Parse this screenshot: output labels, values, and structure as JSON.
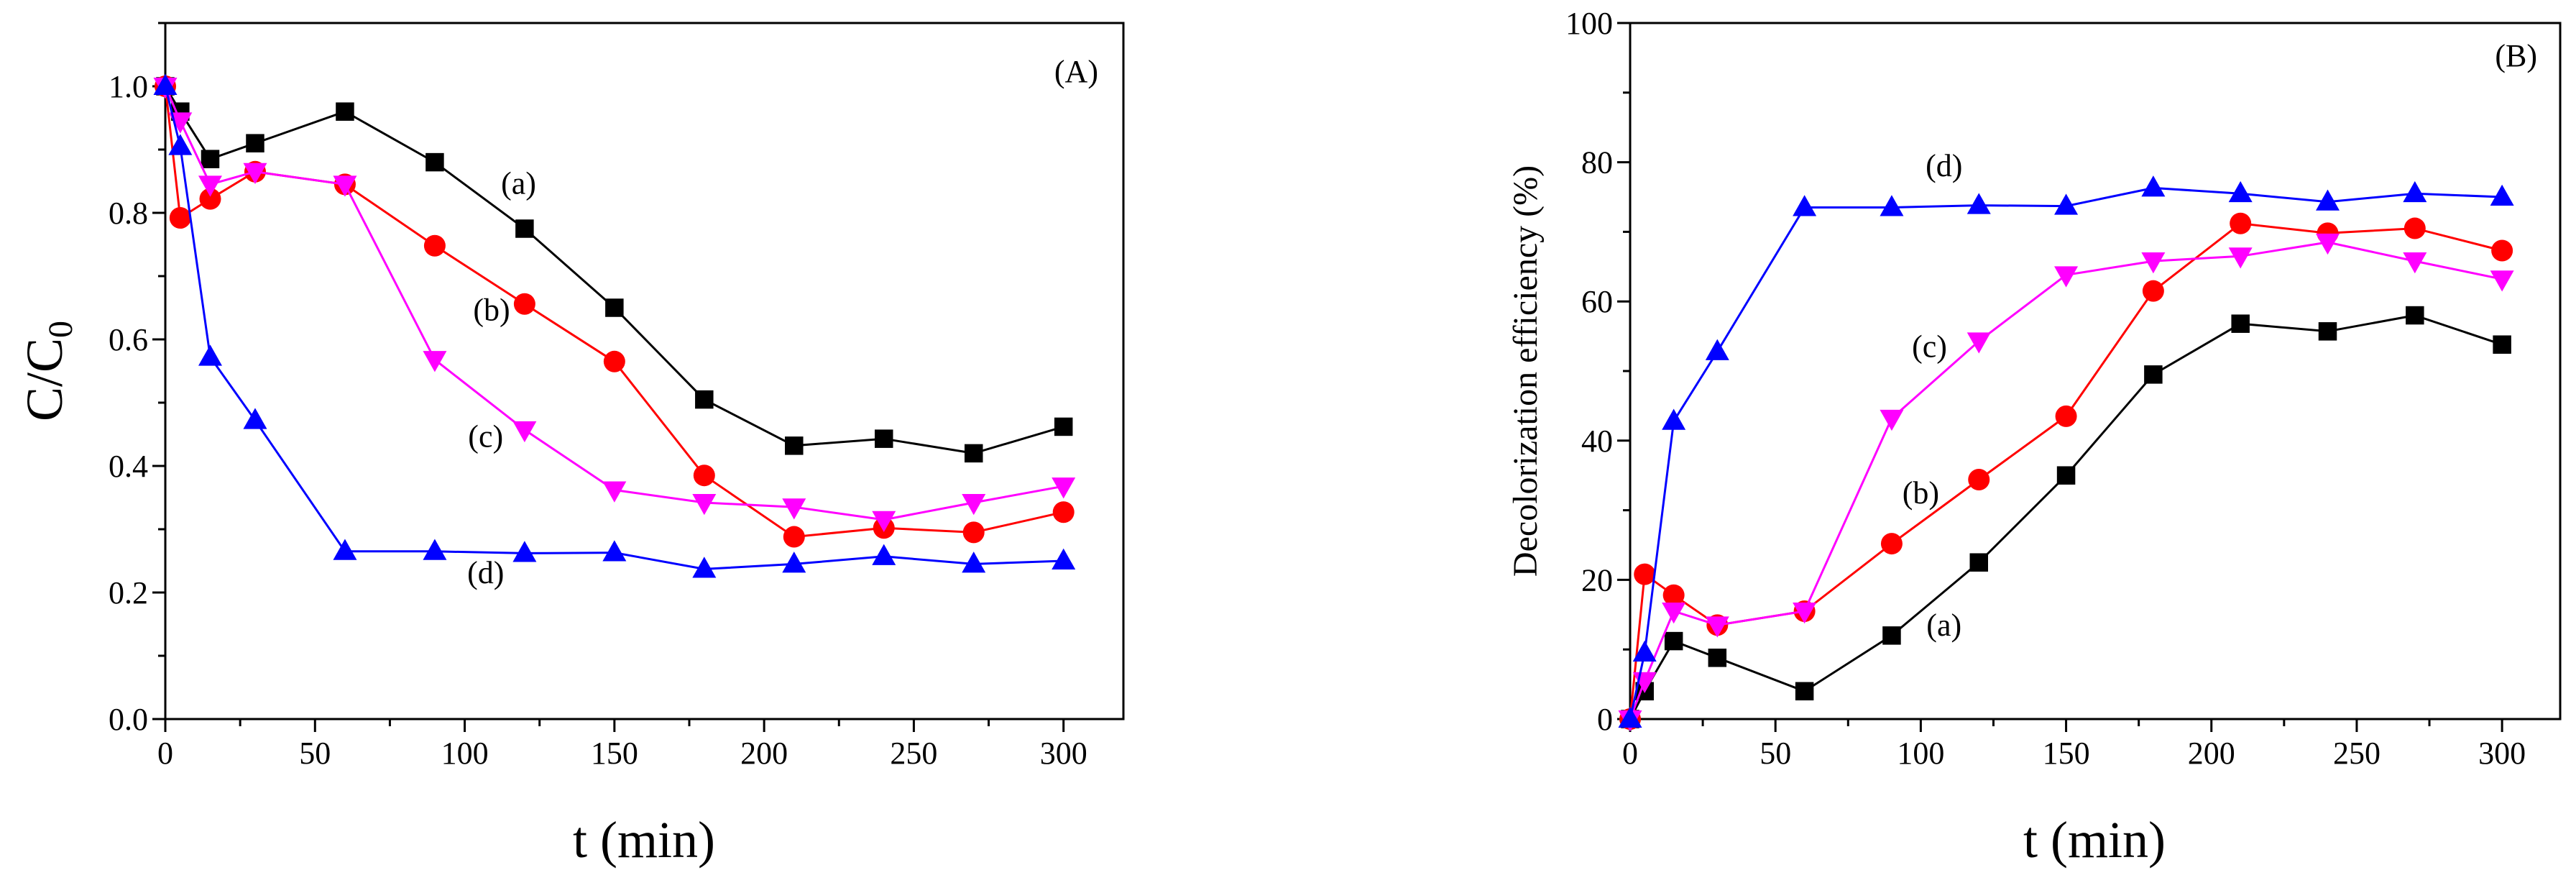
{
  "chart_data": [
    {
      "type": "line",
      "panel_label": "(A)",
      "xlabel": "t (min)",
      "ylabel": {
        "main": "C/C",
        "sub": "0"
      },
      "xlim": [
        0,
        320
      ],
      "ylim": [
        0,
        1.1
      ],
      "x_ticks": [
        "0",
        "50",
        "100",
        "150",
        "200",
        "250",
        "300"
      ],
      "y_ticks": [
        "0.0",
        "0.2",
        "0.4",
        "0.6",
        "0.8",
        "1.0"
      ],
      "x": [
        0,
        5,
        15,
        30,
        60,
        90,
        120,
        150,
        180,
        210,
        240,
        270,
        300
      ],
      "series": [
        {
          "name": "(a)",
          "color": "#000000",
          "marker": "square",
          "values": [
            1.0,
            0.96,
            0.885,
            0.91,
            0.96,
            0.88,
            0.775,
            0.65,
            0.505,
            0.432,
            0.443,
            0.42,
            0.462
          ]
        },
        {
          "name": "(b)",
          "color": "#ff0000",
          "marker": "circle",
          "values": [
            1.0,
            0.792,
            0.822,
            0.865,
            0.845,
            0.748,
            0.656,
            0.565,
            0.385,
            0.288,
            0.302,
            0.295,
            0.327
          ]
        },
        {
          "name": "(c)",
          "color": "#ff00ff",
          "marker": "triangle-down",
          "values": [
            1.0,
            0.945,
            0.845,
            0.865,
            0.845,
            0.568,
            0.457,
            0.362,
            0.342,
            0.335,
            0.315,
            0.342,
            0.368
          ]
        },
        {
          "name": "(d)",
          "color": "#0000ff",
          "marker": "triangle-up",
          "values": [
            1.0,
            0.905,
            0.572,
            0.472,
            0.265,
            0.265,
            0.262,
            0.263,
            0.237,
            0.245,
            0.257,
            0.245,
            0.25
          ]
        }
      ],
      "annotations": [
        {
          "text": "(a)",
          "x": 118,
          "y": 0.83
        },
        {
          "text": "(b)",
          "x": 109,
          "y": 0.63
        },
        {
          "text": "(c)",
          "x": 107,
          "y": 0.43
        },
        {
          "text": "(d)",
          "x": 107,
          "y": 0.215
        }
      ]
    },
    {
      "type": "line",
      "panel_label": "(B)",
      "xlabel": "t (min)",
      "ylabel": "Decolorization efficiency (%)",
      "xlim": [
        0,
        320
      ],
      "ylim": [
        0,
        100
      ],
      "x_ticks": [
        "0",
        "50",
        "100",
        "150",
        "200",
        "250",
        "300"
      ],
      "y_ticks": [
        "0",
        "20",
        "40",
        "60",
        "80",
        "100"
      ],
      "x": [
        0,
        5,
        15,
        30,
        60,
        90,
        120,
        150,
        180,
        210,
        240,
        270,
        300
      ],
      "series": [
        {
          "name": "(a)",
          "color": "#000000",
          "marker": "square",
          "values": [
            0,
            4,
            11.2,
            8.8,
            4.0,
            12.0,
            22.5,
            35.0,
            49.5,
            56.8,
            55.7,
            58.0,
            53.8
          ]
        },
        {
          "name": "(b)",
          "color": "#ff0000",
          "marker": "circle",
          "values": [
            0,
            20.8,
            17.8,
            13.5,
            15.5,
            25.2,
            34.4,
            43.5,
            61.5,
            71.2,
            69.8,
            70.5,
            67.3
          ]
        },
        {
          "name": "(c)",
          "color": "#ff00ff",
          "marker": "triangle-down",
          "values": [
            0,
            5.5,
            15.5,
            13.5,
            15.5,
            43.2,
            54.3,
            63.8,
            65.8,
            66.5,
            68.5,
            65.8,
            63.2
          ]
        },
        {
          "name": "(d)",
          "color": "#0000ff",
          "marker": "triangle-up",
          "values": [
            0,
            9.5,
            42.8,
            52.8,
            73.5,
            73.5,
            73.8,
            73.7,
            76.3,
            75.5,
            74.3,
            75.5,
            75.0
          ]
        }
      ],
      "annotations": [
        {
          "text": "(a)",
          "x": 108,
          "y": 12
        },
        {
          "text": "(b)",
          "x": 100,
          "y": 31
        },
        {
          "text": "(c)",
          "x": 103,
          "y": 52
        },
        {
          "text": "(d)",
          "x": 108,
          "y": 78
        }
      ]
    }
  ]
}
